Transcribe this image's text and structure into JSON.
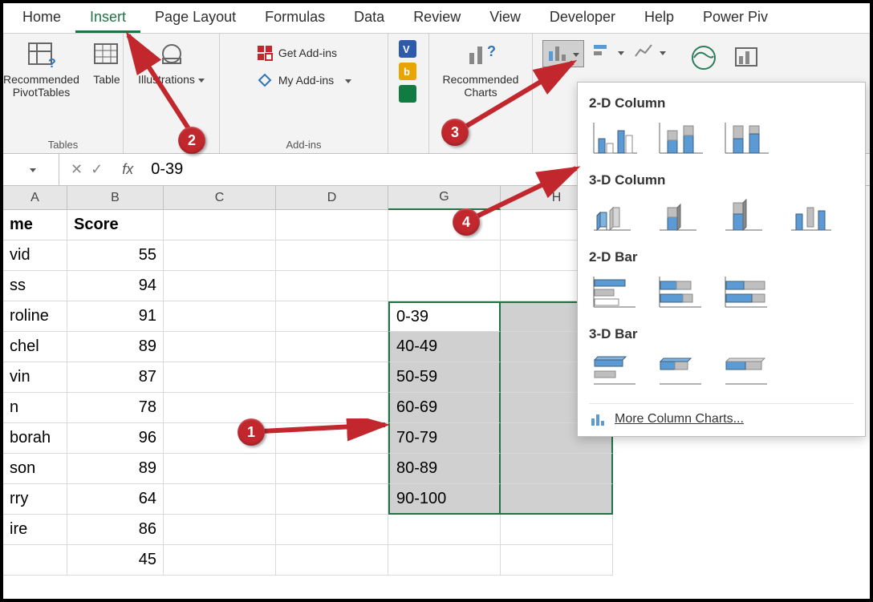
{
  "ribbon": {
    "tabs": [
      "Home",
      "Insert",
      "Page Layout",
      "Formulas",
      "Data",
      "Review",
      "View",
      "Developer",
      "Help",
      "Power Piv"
    ],
    "active_tab": "Insert",
    "groups": {
      "tables": {
        "label": "Tables",
        "pivot": "Recommended PivotTables",
        "table": "Table"
      },
      "illustrations": {
        "label": "Illustrations"
      },
      "addins": {
        "label": "Add-ins",
        "get": "Get Add-ins",
        "my": "My Add-ins"
      },
      "charts": {
        "recommended": "Recommended Charts"
      }
    }
  },
  "formula_bar": {
    "value": "0-39"
  },
  "columns": [
    "A",
    "B",
    "C",
    "D",
    "G",
    "H"
  ],
  "sheet": {
    "header_row": {
      "A": "me",
      "B": "Score"
    },
    "rows": [
      {
        "A": "vid",
        "B": "55"
      },
      {
        "A": "ss",
        "B": "94"
      },
      {
        "A": "roline",
        "B": "91"
      },
      {
        "A": "chel",
        "B": "89"
      },
      {
        "A": "vin",
        "B": "87"
      },
      {
        "A": "n",
        "B": "78"
      },
      {
        "A": "borah",
        "B": "96"
      },
      {
        "A": "son",
        "B": "89"
      },
      {
        "A": "rry",
        "B": "64"
      },
      {
        "A": "ire",
        "B": "86"
      },
      {
        "A": "",
        "B": "45"
      }
    ]
  },
  "bins": [
    "0-39",
    "40-49",
    "50-59",
    "60-69",
    "70-79",
    "80-89",
    "90-100"
  ],
  "chart_panel": {
    "sections": {
      "col2d": "2-D Column",
      "col3d": "3-D Column",
      "bar2d": "2-D Bar",
      "bar3d": "3-D Bar"
    },
    "more": "More Column Charts..."
  },
  "colors": {
    "chart_fill": "#5b9bd5",
    "chart_stroke": "#405f7a",
    "chart_gray": "#bfbfbf",
    "accent": "#217346",
    "callout": "#c1272d"
  },
  "callouts": {
    "c1": "1",
    "c2": "2",
    "c3": "3",
    "c4": "4"
  }
}
